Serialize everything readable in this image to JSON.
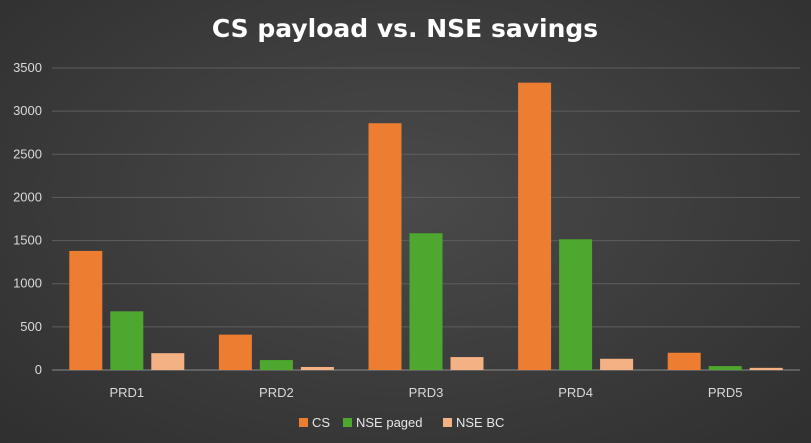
{
  "chart_data": {
    "type": "bar",
    "title": "CS payload vs. NSE savings",
    "xlabel": "",
    "ylabel": "",
    "ylim": [
      0,
      3500
    ],
    "yticks": [
      0,
      500,
      1000,
      1500,
      2000,
      2500,
      3000,
      3500
    ],
    "categories": [
      "PRD1",
      "PRD2",
      "PRD3",
      "PRD4",
      "PRD5"
    ],
    "grid": true,
    "legend_position": "bottom",
    "series": [
      {
        "name": "CS",
        "color": "#ed7d31",
        "values": [
          1380,
          410,
          2860,
          3330,
          200
        ]
      },
      {
        "name": "NSE paged",
        "color": "#4ea72e",
        "values": [
          680,
          115,
          1585,
          1515,
          45
        ]
      },
      {
        "name": "NSE BC",
        "color": "#f4b183",
        "values": [
          195,
          35,
          150,
          130,
          25
        ]
      }
    ]
  }
}
